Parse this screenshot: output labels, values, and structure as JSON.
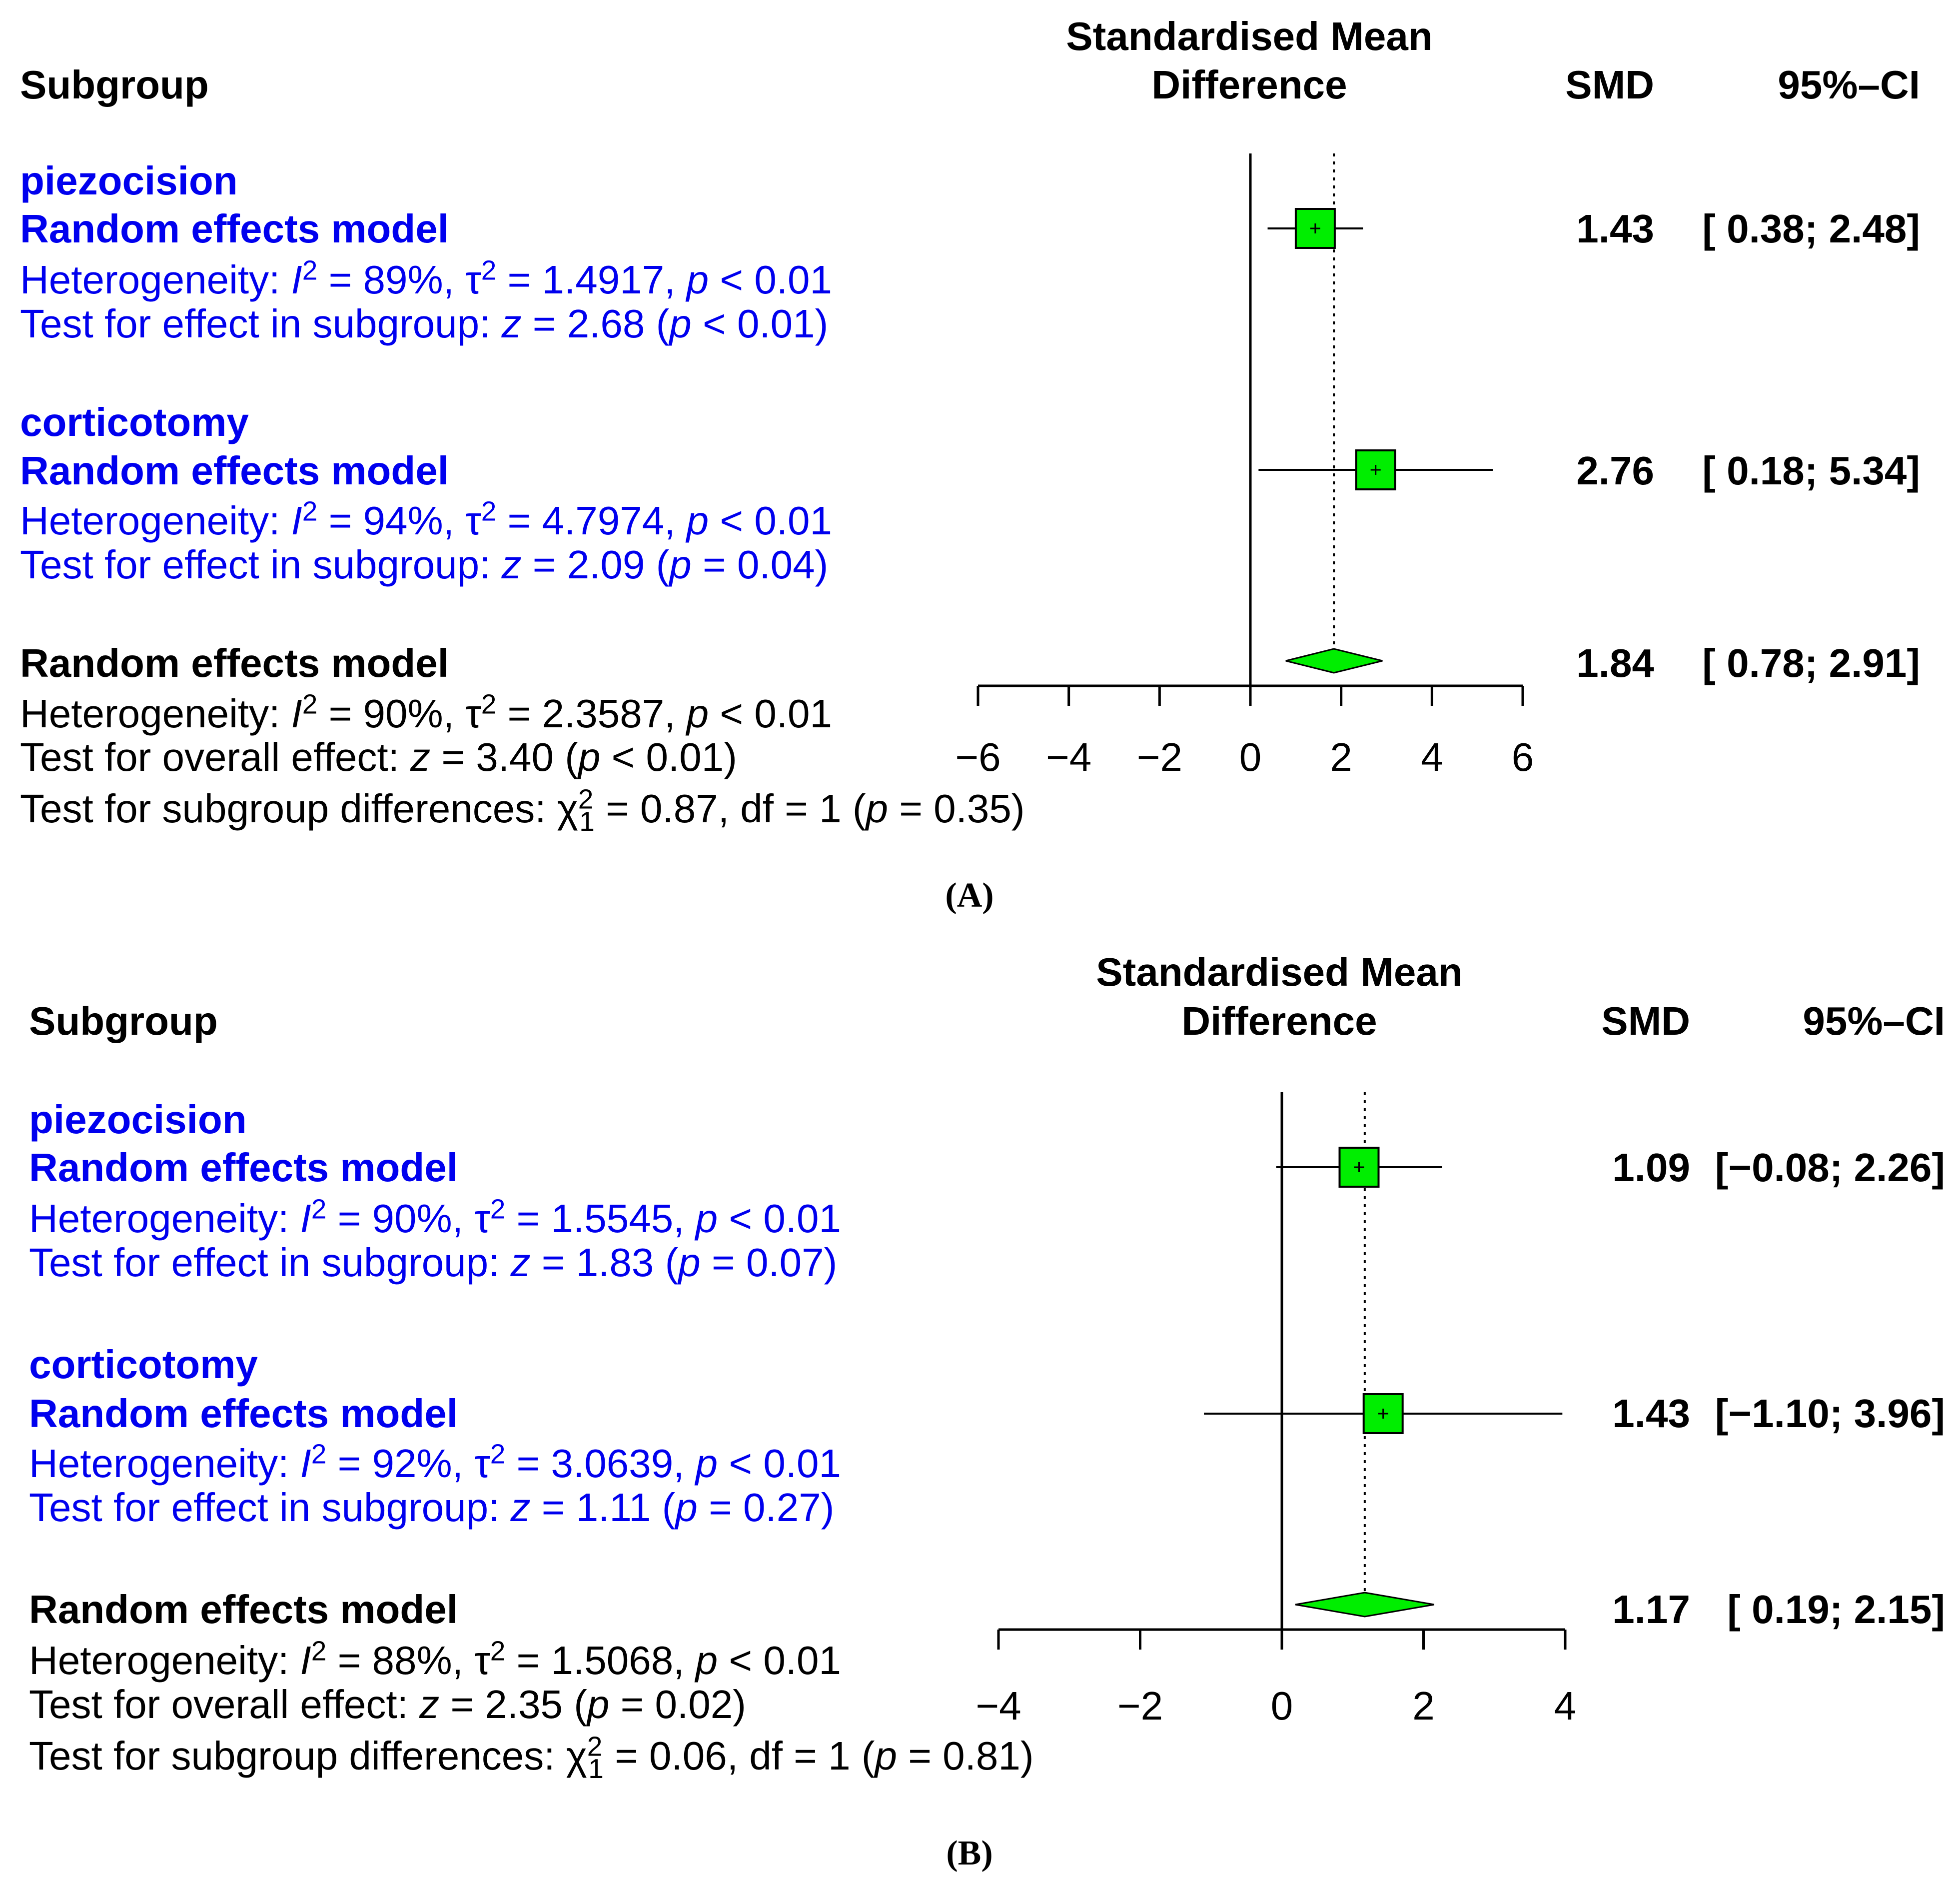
{
  "colors": {
    "subgroup_text": "#0000ee",
    "box_fill": "#00ee00",
    "diamond_fill": "#00ee00",
    "line": "#000000"
  },
  "panels": [
    {
      "caption": "(A)",
      "header": {
        "subgroup": "Subgroup",
        "axis_title_1": "Standardised Mean",
        "axis_title_2": "Difference",
        "smd": "SMD",
        "ci": "95%–CI"
      },
      "groups": [
        {
          "name": "piezocision",
          "model": "Random effects model",
          "het": {
            "label": "Heterogeneity: ",
            "i2": "89%",
            "tau2": "1.4917",
            "p": "< 0.01"
          },
          "test": {
            "label": "Test for effect in subgroup: ",
            "z": "2.68",
            "p": "< 0.01"
          },
          "smd": "1.43",
          "ci": "[ 0.38;  2.48]"
        },
        {
          "name": "corticotomy",
          "model": "Random effects model",
          "het": {
            "label": "Heterogeneity: ",
            "i2": "94%",
            "tau2": "4.7974",
            "p": "< 0.01"
          },
          "test": {
            "label": "Test for effect in subgroup: ",
            "z": "2.09",
            "p": "= 0.04"
          },
          "smd": "2.76",
          "ci": "[ 0.18;  5.34]"
        }
      ],
      "overall": {
        "model": "Random effects model",
        "het": {
          "label": "Heterogeneity: ",
          "i2": "90%",
          "tau2": "2.3587",
          "p": "< 0.01"
        },
        "test": {
          "label": "Test for overall effect: ",
          "z": "3.40",
          "p": "< 0.01"
        },
        "diff": {
          "label": "Test for subgroup differences: ",
          "chi": "0.87",
          "df": "1",
          "p": "= 0.35"
        },
        "smd": "1.84",
        "ci": "[ 0.78;  2.91]"
      },
      "ticks": [
        "−6",
        "−4",
        "−2",
        "0",
        "2",
        "4",
        "6"
      ]
    },
    {
      "caption": "(B)",
      "header": {
        "subgroup": "Subgroup",
        "axis_title_1": "Standardised Mean",
        "axis_title_2": "Difference",
        "smd": "SMD",
        "ci": "95%–CI"
      },
      "groups": [
        {
          "name": "piezocision",
          "model": "Random effects model",
          "het": {
            "label": "Heterogeneity: ",
            "i2": "90%",
            "tau2": "1.5545",
            "p": "< 0.01"
          },
          "test": {
            "label": "Test for effect in subgroup: ",
            "z": "1.83",
            "p": "= 0.07"
          },
          "smd": "1.09",
          "ci": "[−0.08; 2.26]"
        },
        {
          "name": "corticotomy",
          "model": "Random effects model",
          "het": {
            "label": "Heterogeneity: ",
            "i2": "92%",
            "tau2": "3.0639",
            "p": "< 0.01"
          },
          "test": {
            "label": "Test for effect in subgroup: ",
            "z": "1.11",
            "p": "= 0.27"
          },
          "smd": "1.43",
          "ci": "[−1.10; 3.96]"
        }
      ],
      "overall": {
        "model": "Random effects model",
        "het": {
          "label": "Heterogeneity: ",
          "i2": "88%",
          "tau2": "1.5068",
          "p": "< 0.01"
        },
        "test": {
          "label": "Test for overall effect: ",
          "z": "2.35",
          "p": "= 0.02"
        },
        "diff": {
          "label": "Test for subgroup differences: ",
          "chi": "0.06",
          "df": "1",
          "p": "= 0.81"
        },
        "smd": "1.17",
        "ci": "[ 0.19; 2.15]"
      },
      "ticks": [
        "−4",
        "−2",
        "0",
        "2",
        "4"
      ]
    }
  ],
  "chart_data": [
    {
      "type": "forest",
      "title": "Standardised Mean Difference",
      "xlim": [
        -6,
        6
      ],
      "xticks": [
        -6,
        -4,
        -2,
        0,
        2,
        4,
        6
      ],
      "null_line": 0,
      "overall_line": 1.84,
      "rows": [
        {
          "label": "piezocision",
          "smd": 1.43,
          "lower": 0.38,
          "upper": 2.48
        },
        {
          "label": "corticotomy",
          "smd": 2.76,
          "lower": 0.18,
          "upper": 5.34
        },
        {
          "label": "Random effects model",
          "smd": 1.84,
          "lower": 0.78,
          "upper": 2.91,
          "overall": true
        }
      ]
    },
    {
      "type": "forest",
      "title": "Standardised Mean Difference",
      "xlim": [
        -4,
        4
      ],
      "xticks": [
        -4,
        -2,
        0,
        2,
        4
      ],
      "null_line": 0,
      "overall_line": 1.17,
      "rows": [
        {
          "label": "piezocision",
          "smd": 1.09,
          "lower": -0.08,
          "upper": 2.26
        },
        {
          "label": "corticotomy",
          "smd": 1.43,
          "lower": -1.1,
          "upper": 3.96
        },
        {
          "label": "Random effects model",
          "smd": 1.17,
          "lower": 0.19,
          "upper": 2.15,
          "overall": true
        }
      ]
    }
  ]
}
